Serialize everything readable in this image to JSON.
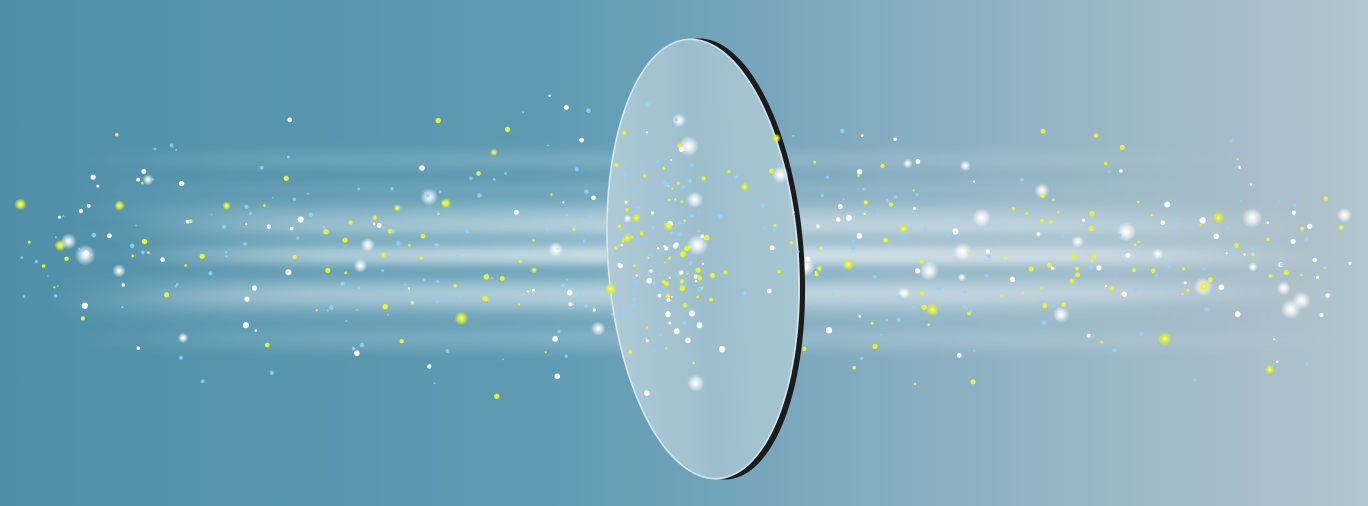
{
  "image": {
    "subject": "optical-lens-light-beam",
    "colors": {
      "background_left": "#4f8fa8",
      "background_right": "#b2c3cd",
      "beam": "#ffffff",
      "particle_yellow": "#e8f230",
      "particle_blue": "#8fd3ff",
      "particle_white": "#ffffff",
      "lens_rim": "#1a1a1a"
    }
  }
}
